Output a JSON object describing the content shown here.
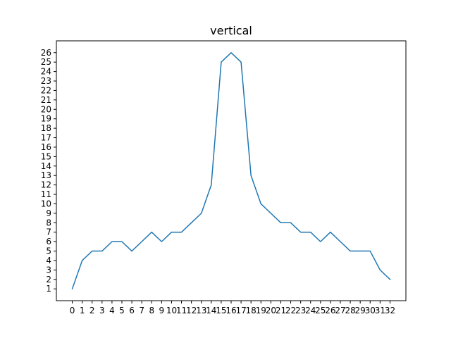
{
  "chart_data": {
    "type": "line",
    "title": "vertical",
    "xlabel": "",
    "ylabel": "",
    "x": [
      0,
      1,
      2,
      3,
      4,
      5,
      6,
      7,
      8,
      9,
      10,
      11,
      12,
      13,
      14,
      15,
      16,
      17,
      18,
      19,
      20,
      21,
      22,
      23,
      24,
      25,
      26,
      27,
      28,
      29,
      30,
      31,
      32
    ],
    "series": [
      {
        "values": [
          1,
          4,
          5,
          5,
          6,
          6,
          5,
          6,
          7,
          6,
          7,
          7,
          8,
          9,
          12,
          25,
          26,
          25,
          13,
          10,
          9,
          8,
          8,
          7,
          7,
          6,
          7,
          6,
          5,
          5,
          5,
          3,
          2
        ],
        "color": "#1f77b4"
      }
    ],
    "xticks": [
      "0",
      "1",
      "2",
      "3",
      "4",
      "5",
      "6",
      "7",
      "8",
      "9",
      "10",
      "11",
      "12",
      "13",
      "14",
      "15",
      "16",
      "17",
      "18",
      "19",
      "20",
      "21",
      "22",
      "23",
      "24",
      "25",
      "26",
      "27",
      "28",
      "29",
      "30",
      "31",
      "32"
    ],
    "yticks": [
      "1",
      "2",
      "3",
      "4",
      "5",
      "6",
      "7",
      "8",
      "9",
      "10",
      "11",
      "12",
      "13",
      "14",
      "15",
      "16",
      "17",
      "18",
      "19",
      "20",
      "21",
      "22",
      "23",
      "24",
      "25",
      "26"
    ],
    "xlim": [
      -1.6,
      33.6
    ],
    "ylim": [
      -0.25,
      27.25
    ],
    "grid": false,
    "legend": "none"
  }
}
